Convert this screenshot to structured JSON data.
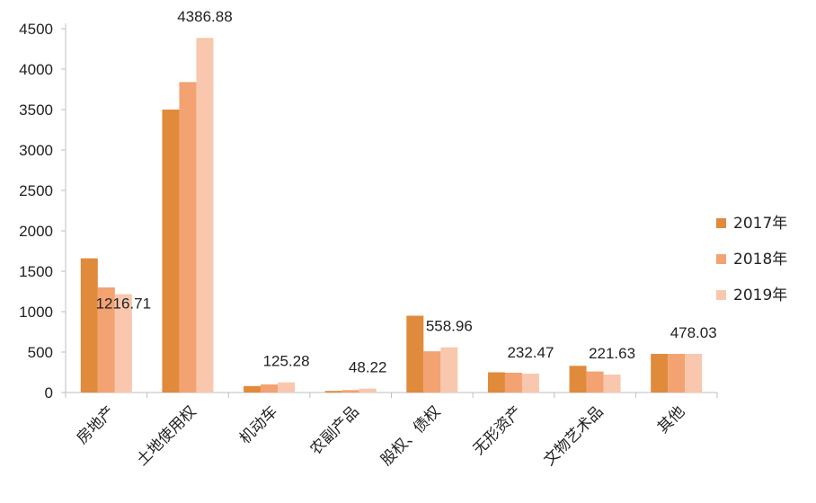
{
  "chart_data": {
    "type": "bar",
    "title": "",
    "xlabel": "",
    "ylabel": "",
    "ylim": [
      0,
      4500
    ],
    "yticks": [
      0,
      500,
      1000,
      1500,
      2000,
      2500,
      3000,
      3500,
      4000,
      4500
    ],
    "grid": false,
    "legend_position": "right",
    "categories": [
      "房地产",
      "土地使用权",
      "机动车",
      "农副产品",
      "股权、债权",
      "无形资产",
      "文物艺术品",
      "其他"
    ],
    "series": [
      {
        "name": "2017年",
        "color": "#e08a3c",
        "values": [
          1660,
          3500,
          80,
          20,
          950,
          250,
          330,
          478
        ]
      },
      {
        "name": "2018年",
        "color": "#f3a272",
        "values": [
          1300,
          3840,
          100,
          30,
          510,
          245,
          260,
          478
        ]
      },
      {
        "name": "2019年",
        "color": "#f9c7ad",
        "values": [
          1216.71,
          4386.88,
          125.28,
          48.22,
          558.96,
          232.47,
          221.63,
          478.03
        ]
      }
    ],
    "data_labels": [
      "1216.71",
      "4386.88",
      "125.28",
      "48.22",
      "558.96",
      "232.47",
      "221.63",
      "478.03"
    ]
  }
}
